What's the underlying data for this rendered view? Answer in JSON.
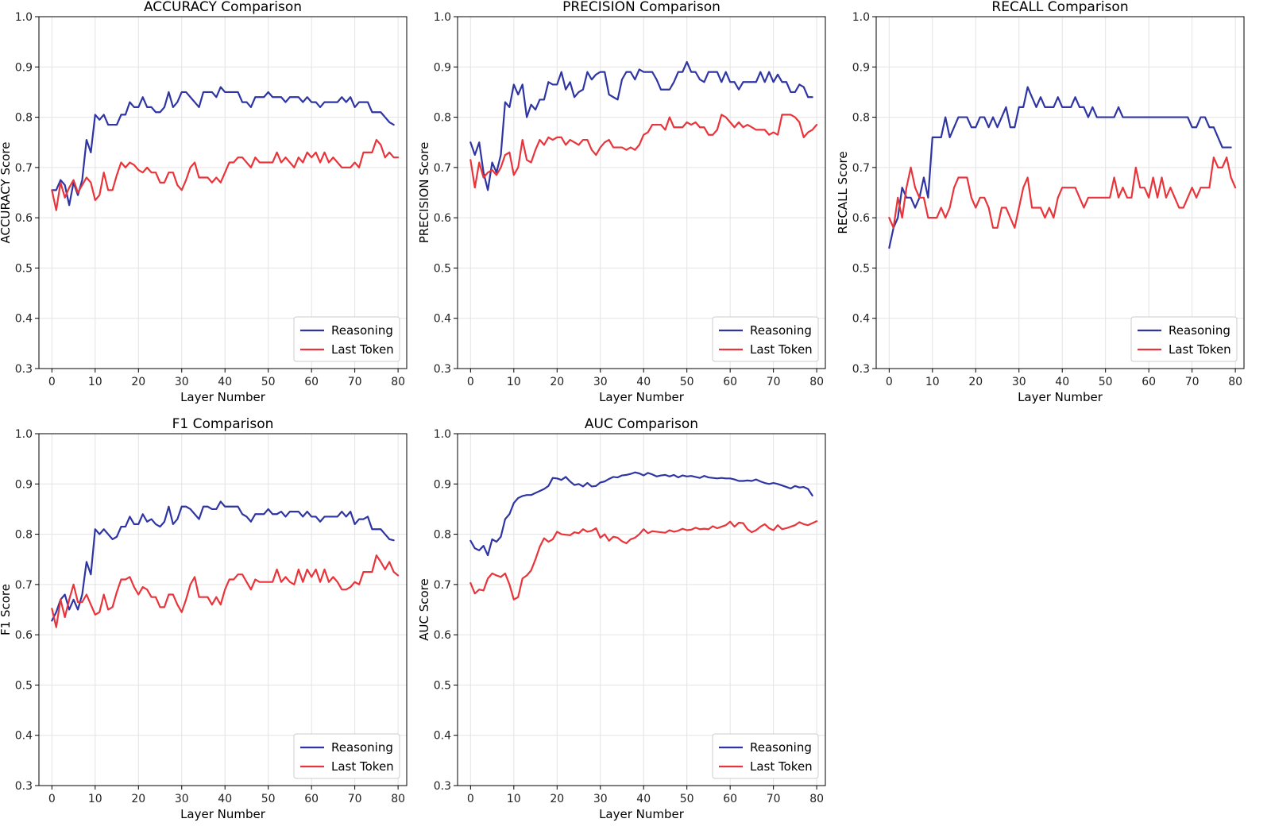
{
  "figure": {
    "x_axis_label": "Layer Number",
    "legend_labels": [
      "Reasoning",
      "Last Token"
    ],
    "series_colors": {
      "Reasoning": "#2e35a3",
      "Last Token": "#e8343a"
    },
    "legend_position": "lower right",
    "grid": true
  },
  "chart_data": [
    {
      "type": "line",
      "title": "ACCURACY Comparison",
      "xlabel": "Layer Number",
      "ylabel": "ACCURACY Score",
      "xlim": [
        -3,
        82
      ],
      "ylim": [
        0.3,
        1.0
      ],
      "xticks": [
        0,
        10,
        20,
        30,
        40,
        50,
        60,
        70,
        80
      ],
      "yticks": [
        0.3,
        0.4,
        0.5,
        0.6,
        0.7,
        0.8,
        0.9,
        1.0
      ],
      "grid": true,
      "legend": "lower right",
      "series": [
        {
          "name": "Reasoning",
          "color": "#2e35a3",
          "values": [
            0.655,
            0.655,
            0.675,
            0.665,
            0.625,
            0.67,
            0.645,
            0.675,
            0.755,
            0.73,
            0.805,
            0.795,
            0.805,
            0.785,
            0.785,
            0.785,
            0.805,
            0.805,
            0.83,
            0.82,
            0.82,
            0.84,
            0.82,
            0.82,
            0.81,
            0.81,
            0.82,
            0.85,
            0.82,
            0.83,
            0.85,
            0.85,
            0.84,
            0.83,
            0.82,
            0.85,
            0.85,
            0.85,
            0.84,
            0.86,
            0.85,
            0.85,
            0.85,
            0.85,
            0.83,
            0.83,
            0.82,
            0.84,
            0.84,
            0.84,
            0.85,
            0.84,
            0.84,
            0.84,
            0.83,
            0.84,
            0.84,
            0.84,
            0.83,
            0.84,
            0.83,
            0.83,
            0.82,
            0.83,
            0.83,
            0.83,
            0.83,
            0.84,
            0.83,
            0.84,
            0.82,
            0.83,
            0.83,
            0.83,
            0.81,
            0.81,
            0.81,
            0.8,
            0.79,
            0.785
          ]
        },
        {
          "name": "Last Token",
          "color": "#e8343a",
          "values": [
            0.655,
            0.615,
            0.67,
            0.64,
            0.66,
            0.675,
            0.65,
            0.665,
            0.68,
            0.67,
            0.635,
            0.645,
            0.69,
            0.655,
            0.655,
            0.685,
            0.71,
            0.7,
            0.71,
            0.705,
            0.695,
            0.69,
            0.7,
            0.69,
            0.69,
            0.67,
            0.67,
            0.69,
            0.69,
            0.665,
            0.655,
            0.675,
            0.7,
            0.71,
            0.68,
            0.68,
            0.68,
            0.67,
            0.68,
            0.67,
            0.69,
            0.71,
            0.71,
            0.72,
            0.72,
            0.71,
            0.7,
            0.72,
            0.71,
            0.71,
            0.71,
            0.71,
            0.73,
            0.71,
            0.72,
            0.71,
            0.7,
            0.72,
            0.71,
            0.73,
            0.72,
            0.73,
            0.71,
            0.73,
            0.71,
            0.72,
            0.71,
            0.7,
            0.7,
            0.7,
            0.71,
            0.7,
            0.73,
            0.73,
            0.73,
            0.755,
            0.745,
            0.72,
            0.73,
            0.72,
            0.72
          ]
        }
      ]
    },
    {
      "type": "line",
      "title": "PRECISION Comparison",
      "xlabel": "Layer Number",
      "ylabel": "PRECISION Score",
      "xlim": [
        -3,
        82
      ],
      "ylim": [
        0.3,
        1.0
      ],
      "xticks": [
        0,
        10,
        20,
        30,
        40,
        50,
        60,
        70,
        80
      ],
      "yticks": [
        0.3,
        0.4,
        0.5,
        0.6,
        0.7,
        0.8,
        0.9,
        1.0
      ],
      "grid": true,
      "legend": "lower right",
      "series": [
        {
          "name": "Reasoning",
          "color": "#2e35a3",
          "values": [
            0.75,
            0.725,
            0.75,
            0.69,
            0.655,
            0.71,
            0.69,
            0.725,
            0.83,
            0.82,
            0.865,
            0.845,
            0.865,
            0.8,
            0.825,
            0.815,
            0.835,
            0.835,
            0.87,
            0.865,
            0.865,
            0.89,
            0.855,
            0.87,
            0.84,
            0.85,
            0.855,
            0.89,
            0.875,
            0.885,
            0.89,
            0.89,
            0.845,
            0.84,
            0.835,
            0.875,
            0.89,
            0.89,
            0.875,
            0.895,
            0.89,
            0.89,
            0.89,
            0.875,
            0.855,
            0.855,
            0.855,
            0.87,
            0.89,
            0.89,
            0.91,
            0.89,
            0.89,
            0.875,
            0.87,
            0.89,
            0.89,
            0.89,
            0.87,
            0.89,
            0.87,
            0.87,
            0.855,
            0.87,
            0.87,
            0.87,
            0.87,
            0.89,
            0.87,
            0.89,
            0.87,
            0.885,
            0.87,
            0.87,
            0.85,
            0.85,
            0.865,
            0.86,
            0.84,
            0.84
          ]
        },
        {
          "name": "Last Token",
          "color": "#e8343a",
          "values": [
            0.715,
            0.66,
            0.71,
            0.68,
            0.69,
            0.695,
            0.685,
            0.7,
            0.725,
            0.73,
            0.685,
            0.7,
            0.755,
            0.715,
            0.71,
            0.735,
            0.755,
            0.745,
            0.76,
            0.755,
            0.76,
            0.76,
            0.745,
            0.755,
            0.75,
            0.745,
            0.755,
            0.755,
            0.735,
            0.725,
            0.74,
            0.75,
            0.755,
            0.74,
            0.74,
            0.74,
            0.735,
            0.74,
            0.735,
            0.745,
            0.765,
            0.77,
            0.785,
            0.785,
            0.785,
            0.775,
            0.8,
            0.78,
            0.78,
            0.78,
            0.79,
            0.785,
            0.79,
            0.78,
            0.78,
            0.765,
            0.765,
            0.775,
            0.805,
            0.8,
            0.79,
            0.78,
            0.79,
            0.78,
            0.785,
            0.78,
            0.775,
            0.775,
            0.775,
            0.765,
            0.77,
            0.765,
            0.805,
            0.805,
            0.805,
            0.8,
            0.79,
            0.76,
            0.77,
            0.775,
            0.785
          ]
        }
      ]
    },
    {
      "type": "line",
      "title": "RECALL Comparison",
      "xlabel": "Layer Number",
      "ylabel": "RECALL Score",
      "xlim": [
        -3,
        82
      ],
      "ylim": [
        0.3,
        1.0
      ],
      "xticks": [
        0,
        10,
        20,
        30,
        40,
        50,
        60,
        70,
        80
      ],
      "yticks": [
        0.3,
        0.4,
        0.5,
        0.6,
        0.7,
        0.8,
        0.9,
        1.0
      ],
      "grid": true,
      "legend": "lower right",
      "series": [
        {
          "name": "Reasoning",
          "color": "#2e35a3",
          "values": [
            0.54,
            0.58,
            0.6,
            0.66,
            0.64,
            0.64,
            0.62,
            0.64,
            0.68,
            0.64,
            0.76,
            0.76,
            0.76,
            0.8,
            0.76,
            0.78,
            0.8,
            0.8,
            0.8,
            0.78,
            0.78,
            0.8,
            0.8,
            0.78,
            0.8,
            0.78,
            0.8,
            0.82,
            0.78,
            0.78,
            0.82,
            0.82,
            0.86,
            0.84,
            0.82,
            0.84,
            0.82,
            0.82,
            0.82,
            0.84,
            0.82,
            0.82,
            0.82,
            0.84,
            0.82,
            0.82,
            0.8,
            0.82,
            0.8,
            0.8,
            0.8,
            0.8,
            0.8,
            0.82,
            0.8,
            0.8,
            0.8,
            0.8,
            0.8,
            0.8,
            0.8,
            0.8,
            0.8,
            0.8,
            0.8,
            0.8,
            0.8,
            0.8,
            0.8,
            0.8,
            0.78,
            0.78,
            0.8,
            0.8,
            0.78,
            0.78,
            0.76,
            0.74,
            0.74,
            0.74
          ]
        },
        {
          "name": "Last Token",
          "color": "#e8343a",
          "values": [
            0.6,
            0.58,
            0.64,
            0.6,
            0.66,
            0.7,
            0.66,
            0.64,
            0.64,
            0.6,
            0.6,
            0.6,
            0.62,
            0.6,
            0.62,
            0.66,
            0.68,
            0.68,
            0.68,
            0.64,
            0.62,
            0.64,
            0.64,
            0.62,
            0.58,
            0.58,
            0.62,
            0.62,
            0.6,
            0.58,
            0.62,
            0.66,
            0.68,
            0.62,
            0.62,
            0.62,
            0.6,
            0.62,
            0.6,
            0.64,
            0.66,
            0.66,
            0.66,
            0.66,
            0.64,
            0.62,
            0.64,
            0.64,
            0.64,
            0.64,
            0.64,
            0.64,
            0.68,
            0.64,
            0.66,
            0.64,
            0.64,
            0.7,
            0.66,
            0.66,
            0.64,
            0.68,
            0.64,
            0.68,
            0.64,
            0.66,
            0.64,
            0.62,
            0.62,
            0.64,
            0.66,
            0.64,
            0.66,
            0.66,
            0.66,
            0.72,
            0.7,
            0.7,
            0.72,
            0.68,
            0.66
          ]
        }
      ]
    },
    {
      "type": "line",
      "title": "F1 Comparison",
      "xlabel": "Layer Number",
      "ylabel": "F1 Score",
      "xlim": [
        -3,
        82
      ],
      "ylim": [
        0.3,
        1.0
      ],
      "xticks": [
        0,
        10,
        20,
        30,
        40,
        50,
        60,
        70,
        80
      ],
      "yticks": [
        0.3,
        0.4,
        0.5,
        0.6,
        0.7,
        0.8,
        0.9,
        1.0
      ],
      "grid": true,
      "legend": "lower right",
      "series": [
        {
          "name": "Reasoning",
          "color": "#2e35a3",
          "values": [
            0.628,
            0.645,
            0.67,
            0.68,
            0.65,
            0.67,
            0.65,
            0.68,
            0.745,
            0.72,
            0.81,
            0.8,
            0.81,
            0.8,
            0.79,
            0.795,
            0.815,
            0.815,
            0.835,
            0.82,
            0.82,
            0.84,
            0.825,
            0.83,
            0.82,
            0.815,
            0.825,
            0.855,
            0.82,
            0.83,
            0.855,
            0.855,
            0.85,
            0.84,
            0.83,
            0.855,
            0.855,
            0.85,
            0.85,
            0.865,
            0.855,
            0.855,
            0.855,
            0.855,
            0.84,
            0.835,
            0.825,
            0.84,
            0.84,
            0.84,
            0.85,
            0.84,
            0.84,
            0.845,
            0.835,
            0.845,
            0.845,
            0.845,
            0.835,
            0.845,
            0.835,
            0.835,
            0.825,
            0.835,
            0.835,
            0.835,
            0.835,
            0.845,
            0.835,
            0.845,
            0.82,
            0.83,
            0.83,
            0.835,
            0.81,
            0.81,
            0.81,
            0.8,
            0.79,
            0.788
          ]
        },
        {
          "name": "Last Token",
          "color": "#e8343a",
          "values": [
            0.652,
            0.615,
            0.67,
            0.635,
            0.67,
            0.7,
            0.665,
            0.665,
            0.68,
            0.66,
            0.64,
            0.645,
            0.68,
            0.65,
            0.655,
            0.685,
            0.71,
            0.71,
            0.715,
            0.695,
            0.68,
            0.695,
            0.69,
            0.675,
            0.675,
            0.655,
            0.655,
            0.68,
            0.68,
            0.66,
            0.645,
            0.67,
            0.7,
            0.715,
            0.675,
            0.675,
            0.675,
            0.66,
            0.675,
            0.66,
            0.69,
            0.71,
            0.71,
            0.72,
            0.72,
            0.705,
            0.69,
            0.71,
            0.705,
            0.705,
            0.705,
            0.705,
            0.73,
            0.705,
            0.715,
            0.705,
            0.7,
            0.73,
            0.705,
            0.73,
            0.715,
            0.73,
            0.705,
            0.73,
            0.705,
            0.715,
            0.705,
            0.69,
            0.69,
            0.695,
            0.705,
            0.7,
            0.725,
            0.725,
            0.725,
            0.758,
            0.745,
            0.73,
            0.745,
            0.725,
            0.718
          ]
        }
      ]
    },
    {
      "type": "line",
      "title": "AUC Comparison",
      "xlabel": "Layer Number",
      "ylabel": "AUC Score",
      "xlim": [
        -3,
        82
      ],
      "ylim": [
        0.3,
        1.0
      ],
      "xticks": [
        0,
        10,
        20,
        30,
        40,
        50,
        60,
        70,
        80
      ],
      "yticks": [
        0.3,
        0.4,
        0.5,
        0.6,
        0.7,
        0.8,
        0.9,
        1.0
      ],
      "grid": true,
      "legend": "lower right",
      "series": [
        {
          "name": "Reasoning",
          "color": "#2e35a3",
          "values": [
            0.787,
            0.772,
            0.768,
            0.777,
            0.758,
            0.79,
            0.785,
            0.795,
            0.83,
            0.84,
            0.862,
            0.872,
            0.876,
            0.878,
            0.878,
            0.882,
            0.886,
            0.89,
            0.896,
            0.912,
            0.911,
            0.908,
            0.914,
            0.905,
            0.898,
            0.9,
            0.895,
            0.902,
            0.895,
            0.896,
            0.903,
            0.905,
            0.91,
            0.914,
            0.913,
            0.917,
            0.918,
            0.92,
            0.923,
            0.921,
            0.917,
            0.922,
            0.919,
            0.915,
            0.917,
            0.918,
            0.915,
            0.918,
            0.913,
            0.917,
            0.915,
            0.916,
            0.914,
            0.912,
            0.916,
            0.913,
            0.912,
            0.911,
            0.912,
            0.911,
            0.911,
            0.909,
            0.906,
            0.906,
            0.907,
            0.906,
            0.909,
            0.905,
            0.902,
            0.9,
            0.902,
            0.9,
            0.897,
            0.894,
            0.891,
            0.896,
            0.893,
            0.894,
            0.89,
            0.877
          ]
        },
        {
          "name": "Last Token",
          "color": "#e8343a",
          "values": [
            0.703,
            0.682,
            0.69,
            0.688,
            0.712,
            0.722,
            0.718,
            0.715,
            0.722,
            0.7,
            0.67,
            0.675,
            0.712,
            0.718,
            0.728,
            0.75,
            0.775,
            0.792,
            0.785,
            0.79,
            0.805,
            0.8,
            0.799,
            0.798,
            0.804,
            0.802,
            0.81,
            0.805,
            0.807,
            0.812,
            0.793,
            0.8,
            0.787,
            0.795,
            0.793,
            0.786,
            0.782,
            0.79,
            0.793,
            0.8,
            0.81,
            0.802,
            0.806,
            0.805,
            0.804,
            0.803,
            0.808,
            0.805,
            0.807,
            0.811,
            0.808,
            0.809,
            0.813,
            0.81,
            0.811,
            0.81,
            0.816,
            0.812,
            0.815,
            0.818,
            0.825,
            0.815,
            0.823,
            0.822,
            0.81,
            0.804,
            0.808,
            0.815,
            0.82,
            0.812,
            0.808,
            0.818,
            0.81,
            0.812,
            0.815,
            0.818,
            0.824,
            0.82,
            0.818,
            0.822,
            0.826
          ]
        }
      ]
    }
  ]
}
